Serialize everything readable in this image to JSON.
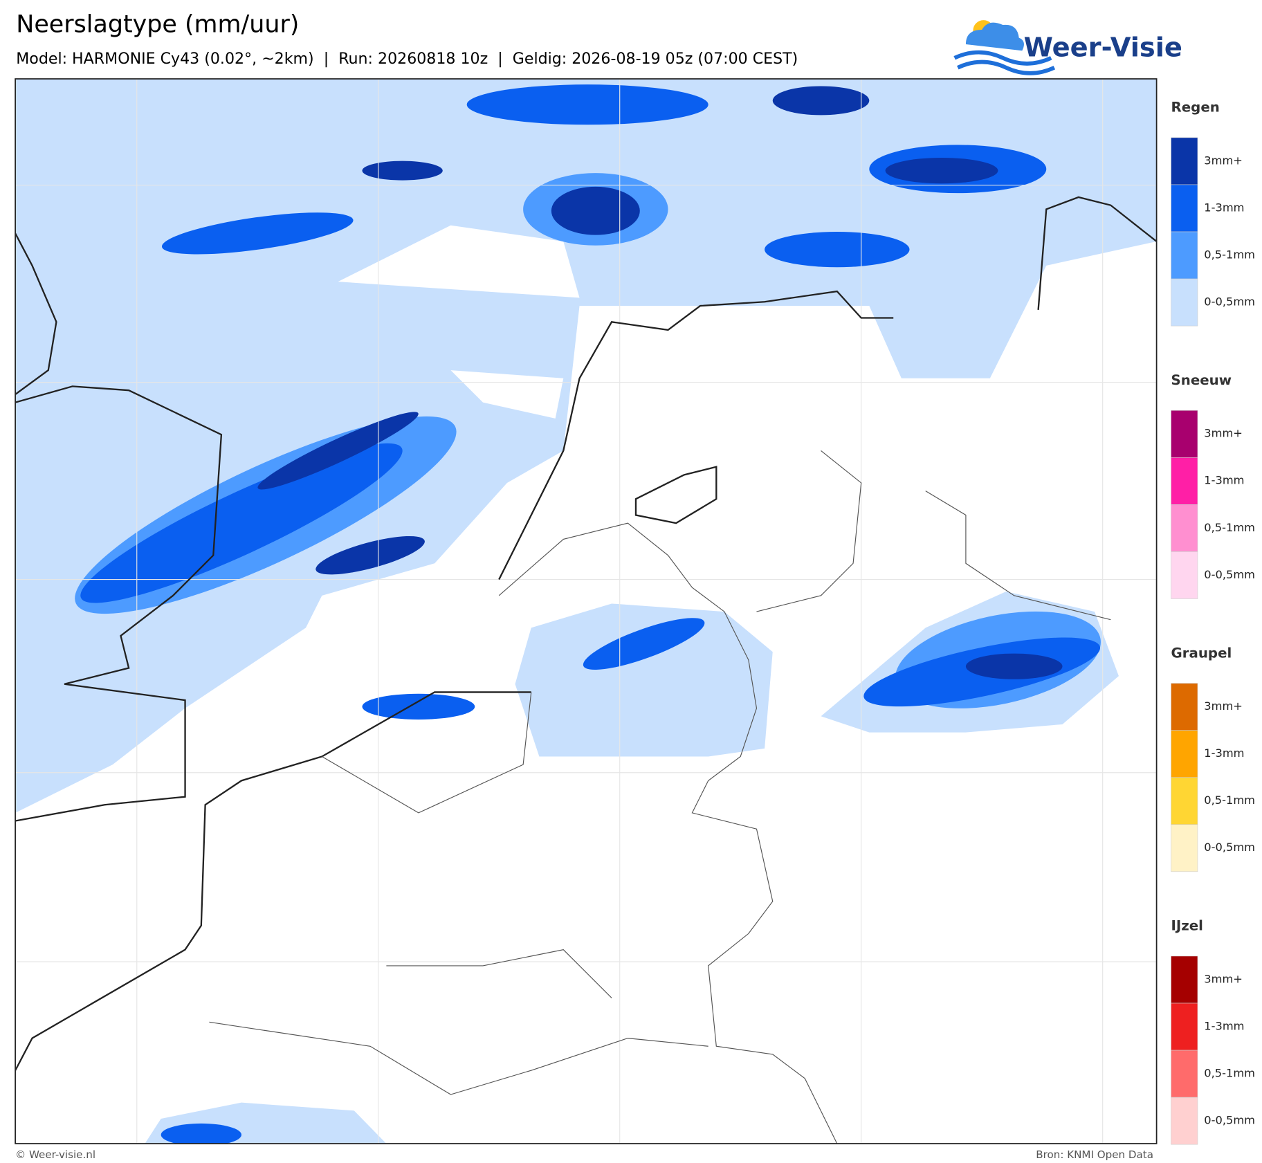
{
  "header": {
    "title": "Neerslagtype (mm/uur)",
    "subtitle": "Model: HARMONIE Cy43 (0.02°, ~2km)  |  Run: 20260818 10z  |  Geldig: 2026-08-19 05z (07:00 CEST)",
    "logo": "Weer-Visie"
  },
  "legend": [
    {
      "title": "Regen",
      "items": [
        {
          "label": "3mm+",
          "color": "#0a35a8"
        },
        {
          "label": "1-3mm",
          "color": "#0a5ff0"
        },
        {
          "label": "0,5-1mm",
          "color": "#4d9bff"
        },
        {
          "label": "0-0,5mm",
          "color": "#c8e0fd"
        }
      ]
    },
    {
      "title": "Sneeuw",
      "items": [
        {
          "label": "3mm+",
          "color": "#a8006e"
        },
        {
          "label": "1-3mm",
          "color": "#ff1fa6"
        },
        {
          "label": "0,5-1mm",
          "color": "#ff8fd0"
        },
        {
          "label": "0-0,5mm",
          "color": "#ffd6ef"
        }
      ]
    },
    {
      "title": "Graupel",
      "items": [
        {
          "label": "3mm+",
          "color": "#dd6a00"
        },
        {
          "label": "1-3mm",
          "color": "#ffa500"
        },
        {
          "label": "0,5-1mm",
          "color": "#ffd633"
        },
        {
          "label": "0-0,5mm",
          "color": "#fff2c6"
        }
      ]
    },
    {
      "title": "IJzel",
      "items": [
        {
          "label": "3mm+",
          "color": "#a50000"
        },
        {
          "label": "1-3mm",
          "color": "#ee2020"
        },
        {
          "label": "0,5-1mm",
          "color": "#ff6b6b"
        },
        {
          "label": "0-0,5mm",
          "color": "#ffd0d0"
        }
      ]
    }
  ],
  "footer": {
    "left": "© Weer-visie.nl",
    "right": "Bron: KNMI Open Data"
  }
}
